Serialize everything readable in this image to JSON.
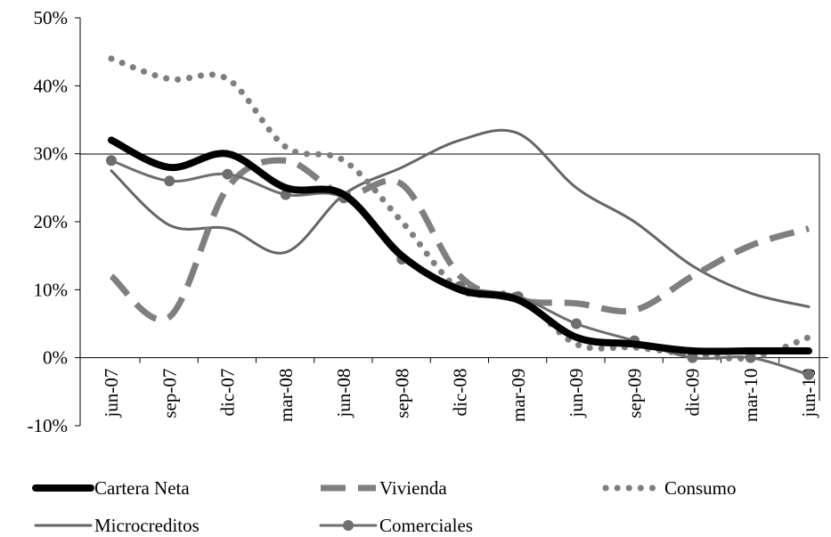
{
  "chart_data": {
    "type": "line",
    "categories": [
      "jun-07",
      "sep-07",
      "dic-07",
      "mar-08",
      "jun-08",
      "sep-08",
      "dic-08",
      "mar-09",
      "jun-09",
      "sep-09",
      "dic-09",
      "mar-10",
      "jun-10"
    ],
    "series": [
      {
        "name": "Cartera Neta",
        "color": "#000000",
        "values": [
          32,
          28,
          30,
          25,
          24,
          15,
          10,
          8.5,
          3,
          2,
          1,
          1,
          1
        ]
      },
      {
        "name": "Vivienda",
        "color": "#7f7f7f",
        "values": [
          12,
          6,
          25,
          29,
          24,
          25.5,
          12,
          8.5,
          8,
          7,
          12,
          16.5,
          19
        ]
      },
      {
        "name": "Consumo",
        "color": "#7f7f7f",
        "values": [
          44,
          41,
          41,
          31,
          29,
          20,
          10,
          9,
          2,
          1.5,
          0.5,
          0,
          3
        ]
      },
      {
        "name": "Microcreditos",
        "color": "#666666",
        "values": [
          27.5,
          19.5,
          19,
          15.5,
          24,
          28,
          32,
          33,
          25,
          20,
          13.5,
          9.5,
          7.5
        ]
      },
      {
        "name": "Comerciales",
        "color": "#6e6e6e",
        "values": [
          29,
          26,
          27,
          24,
          23.5,
          14.5,
          10.5,
          9,
          5,
          2.5,
          0,
          0,
          -2.5
        ]
      }
    ],
    "ylim": [
      -10,
      50
    ],
    "yticks": [
      {
        "value": -10,
        "label": "-10%"
      },
      {
        "value": 0,
        "label": "0%"
      },
      {
        "value": 10,
        "label": "10%"
      },
      {
        "value": 20,
        "label": "20%"
      },
      {
        "value": 30,
        "label": "30%"
      },
      {
        "value": 40,
        "label": "40%"
      },
      {
        "value": 50,
        "label": "50%"
      }
    ]
  }
}
